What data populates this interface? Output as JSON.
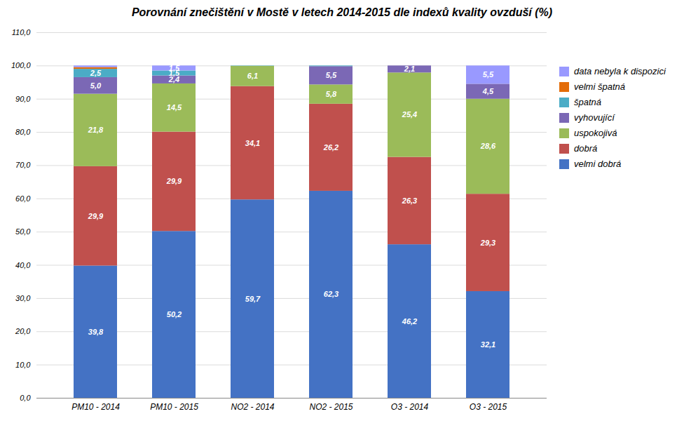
{
  "chart_data": {
    "type": "bar",
    "stacked": true,
    "title": "Porovnání znečištění v Mostě v letech 2014-2015 dle indexů kvality ovzduší (%)",
    "categories": [
      "PM10 - 2014",
      "PM10 - 2015",
      "NO2 - 2014",
      "NO2 - 2015",
      "O3 - 2014",
      "O3 - 2015"
    ],
    "series": [
      {
        "name": "velmi dobrá",
        "color": "#4472C4",
        "values": [
          39.8,
          50.2,
          59.7,
          62.3,
          46.2,
          32.1
        ],
        "value_labels": [
          "39,8",
          "50,2",
          "59,7",
          "62,3",
          "46,2",
          "32,1"
        ]
      },
      {
        "name": "dobrá",
        "color": "#C0504D",
        "values": [
          29.9,
          29.9,
          34.1,
          26.2,
          26.3,
          29.3
        ],
        "value_labels": [
          "29,9",
          "29,9",
          "34,1",
          "26,2",
          "26,3",
          "29,3"
        ]
      },
      {
        "name": "uspokojivá",
        "color": "#9BBB59",
        "values": [
          21.8,
          14.5,
          6.1,
          5.8,
          25.4,
          28.6
        ],
        "value_labels": [
          "21,8",
          "14,5",
          "6,1",
          "5,8",
          "25,4",
          "28,6"
        ]
      },
      {
        "name": "vyhovující",
        "color": "#7B68B5",
        "values": [
          5.0,
          2.4,
          0.0,
          5.5,
          2.1,
          4.5
        ],
        "value_labels": [
          "5,0",
          "2,4",
          null,
          "5,5",
          "2,1",
          "4,5"
        ]
      },
      {
        "name": "špatná",
        "color": "#4BACC6",
        "values": [
          2.5,
          1.5,
          0.1,
          0.2,
          0.0,
          0.0
        ],
        "value_labels": [
          "2,5",
          "1,5",
          null,
          null,
          null,
          null
        ]
      },
      {
        "name": "velmi špatná",
        "color": "#E36C09",
        "values": [
          0.5,
          0.0,
          0.0,
          0.0,
          0.0,
          0.0
        ],
        "value_labels": [
          null,
          null,
          null,
          null,
          null,
          null
        ]
      },
      {
        "name": "data nebyla k dispozici",
        "color": "#9999FF",
        "values": [
          0.5,
          1.5,
          0.0,
          0.0,
          0.0,
          5.5
        ],
        "value_labels": [
          null,
          "1,5",
          null,
          null,
          null,
          "5,5"
        ]
      }
    ],
    "ylim": [
      0,
      110
    ],
    "yticks": [
      {
        "value": 0,
        "label": "0,0"
      },
      {
        "value": 10,
        "label": "10,0"
      },
      {
        "value": 20,
        "label": "20,0"
      },
      {
        "value": 30,
        "label": "30,0"
      },
      {
        "value": 40,
        "label": "40,0"
      },
      {
        "value": 50,
        "label": "50,0"
      },
      {
        "value": 60,
        "label": "60,0"
      },
      {
        "value": 70,
        "label": "70,0"
      },
      {
        "value": 80,
        "label": "80,0"
      },
      {
        "value": 90,
        "label": "90,0"
      },
      {
        "value": 100,
        "label": "100,0"
      },
      {
        "value": 110,
        "label": "110,0"
      }
    ],
    "grid": true,
    "legend": "right",
    "data_labels": true
  }
}
